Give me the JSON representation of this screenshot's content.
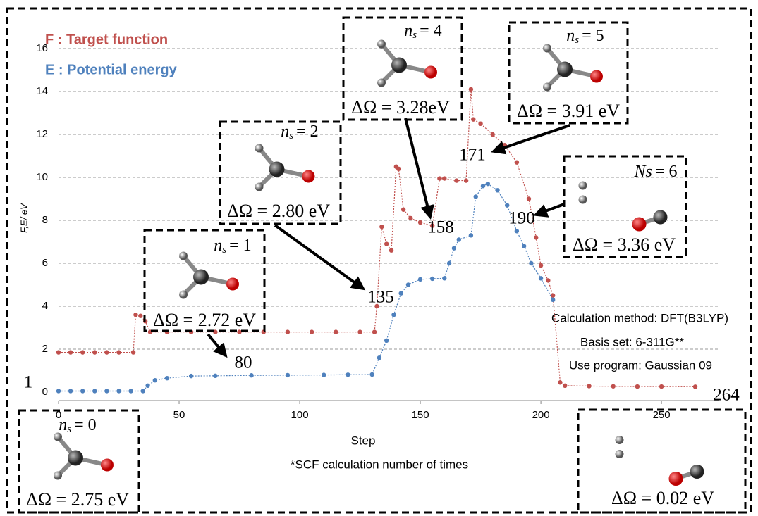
{
  "chart_data": {
    "type": "line",
    "xlabel": "Step",
    "xlabel_note": "*SCF calculation number of times",
    "ylabel": "F,E/ eV",
    "xlim": [
      0,
      264
    ],
    "ylim": [
      0,
      16
    ],
    "xticks": [
      0,
      50,
      100,
      150,
      200,
      250
    ],
    "yticks": [
      0,
      2,
      4,
      6,
      8,
      10,
      12,
      14,
      16
    ],
    "grid": true,
    "series": [
      {
        "name": "F : Target function",
        "color": "#c0504d",
        "x": [
          0,
          5,
          10,
          15,
          20,
          25,
          31,
          32,
          34,
          36,
          38,
          45,
          55,
          65,
          75,
          85,
          95,
          105,
          115,
          125,
          131,
          132,
          134,
          136,
          138,
          140,
          141,
          143,
          146,
          150,
          155,
          158,
          160,
          165,
          169,
          171,
          172,
          175,
          180,
          185,
          190,
          195,
          198,
          200,
          203,
          205,
          208,
          210,
          220,
          230,
          240,
          250,
          264
        ],
        "values": [
          1.85,
          1.85,
          1.85,
          1.85,
          1.85,
          1.85,
          1.85,
          3.6,
          3.55,
          3.3,
          2.8,
          2.8,
          2.8,
          2.8,
          2.8,
          2.8,
          2.8,
          2.8,
          2.8,
          2.8,
          2.8,
          4.0,
          7.7,
          6.9,
          6.6,
          10.5,
          10.4,
          8.5,
          8.1,
          7.9,
          7.75,
          9.95,
          9.95,
          9.85,
          9.85,
          14.1,
          12.7,
          12.5,
          12.0,
          11.5,
          10.7,
          9.0,
          7.2,
          5.9,
          5.2,
          4.5,
          0.45,
          0.3,
          0.28,
          0.27,
          0.26,
          0.26,
          0.25
        ]
      },
      {
        "name": "E : Potential energy",
        "color": "#4f81bd",
        "x": [
          0,
          5,
          10,
          15,
          20,
          25,
          30,
          35,
          37,
          40,
          45,
          55,
          65,
          80,
          95,
          110,
          120,
          130,
          133,
          136,
          139,
          142,
          145,
          150,
          155,
          160,
          162,
          164,
          166,
          171,
          173,
          176,
          178,
          182,
          186,
          190,
          193,
          196,
          200,
          205
        ],
        "values": [
          0.05,
          0.05,
          0.05,
          0.05,
          0.05,
          0.05,
          0.05,
          0.05,
          0.3,
          0.55,
          0.65,
          0.75,
          0.76,
          0.78,
          0.79,
          0.8,
          0.81,
          0.82,
          1.6,
          2.4,
          3.6,
          4.6,
          5.0,
          5.25,
          5.28,
          5.3,
          6.0,
          6.7,
          7.1,
          7.3,
          9.1,
          9.6,
          9.7,
          9.4,
          8.7,
          7.5,
          6.8,
          6.0,
          5.3,
          4.3
        ]
      }
    ],
    "method_notes": [
      "Calculation method: DFT(B3LYP)",
      "Basis set: 6-311G**",
      "Use program: Gaussian 09"
    ],
    "step_labels": [
      "80",
      "135",
      "158",
      "171",
      "190",
      "264",
      "1"
    ],
    "states": [
      {
        "symbol": "n",
        "subscript": "s",
        "rest": "= 0",
        "delta": "ΔΩ = 2.75 eV"
      },
      {
        "symbol": "n",
        "subscript": "s",
        "rest": "= 1",
        "delta": "ΔΩ = 2.72 eV"
      },
      {
        "symbol": "n",
        "subscript": "s",
        "rest": "= 2",
        "delta": "ΔΩ = 2.80 eV"
      },
      {
        "symbol": "n",
        "subscript": "s",
        "rest": "= 4",
        "delta": "ΔΩ = 3.28eV"
      },
      {
        "symbol": "n",
        "subscript": "s",
        "rest": "= 5",
        "delta": "ΔΩ = 3.91 eV"
      },
      {
        "symbol": "Ns",
        "subscript": null,
        "rest": "= 6",
        "delta": "ΔΩ = 3.36 eV"
      },
      {
        "symbol": null,
        "subscript": null,
        "rest": null,
        "delta": "ΔΩ = 0.02 eV"
      }
    ]
  }
}
